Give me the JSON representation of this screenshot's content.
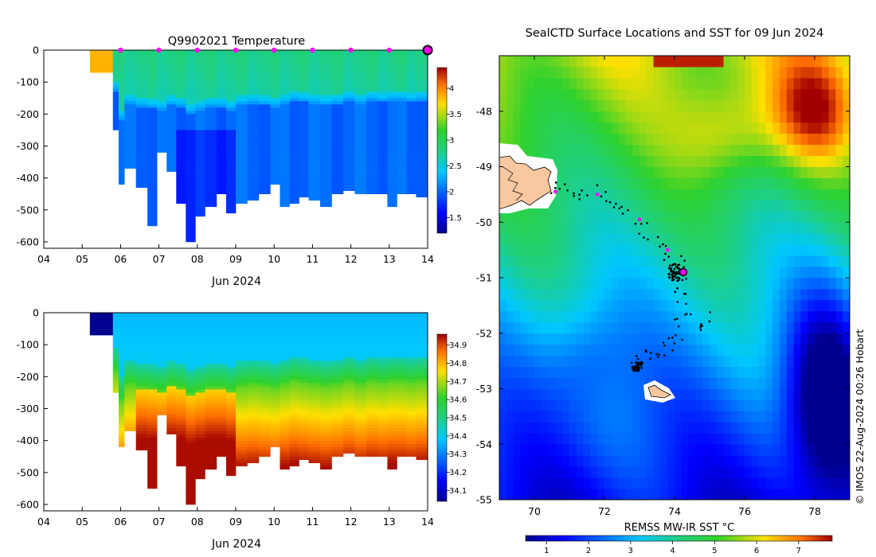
{
  "chart_data": [
    {
      "type": "heatmap",
      "panel": "temperature-section",
      "title": "Q9902021  Temperature",
      "xlabel": "Jun 2024",
      "ylabel": "",
      "x_ticks": [
        "04",
        "05",
        "06",
        "07",
        "08",
        "09",
        "10",
        "11",
        "12",
        "13",
        "14"
      ],
      "y_ticks": [
        "0",
        "-100",
        "-200",
        "-300",
        "-400",
        "-500",
        "-600"
      ],
      "x_range_days": [
        4,
        14
      ],
      "y_range": [
        -620,
        0
      ],
      "profile_markers_days": [
        6,
        7,
        8,
        9,
        10,
        11,
        12,
        13
      ],
      "latest_marker_day": 14,
      "colorbar": {
        "ticks": [
          "1.5",
          "2",
          "2.5",
          "3",
          "3.5",
          "4"
        ],
        "range": [
          1.2,
          4.4
        ]
      },
      "profiles": {
        "x_start": [
          5.2,
          5.8,
          5.95,
          6.1,
          6.4,
          6.7,
          6.95,
          7.2,
          7.45,
          7.7,
          7.95,
          8.2,
          8.5,
          8.75,
          9.0,
          9.3,
          9.6,
          9.9,
          10.15,
          10.4,
          10.65,
          10.9,
          11.2,
          11.5,
          11.8,
          12.1,
          12.4,
          12.7,
          12.95,
          13.2,
          13.45,
          13.7
        ],
        "x_end": [
          5.8,
          5.95,
          6.1,
          6.4,
          6.7,
          6.95,
          7.2,
          7.45,
          7.7,
          7.95,
          8.2,
          8.5,
          8.75,
          9.0,
          9.3,
          9.6,
          9.9,
          10.15,
          10.4,
          10.65,
          10.9,
          11.2,
          11.5,
          11.8,
          12.1,
          12.4,
          12.7,
          12.95,
          13.2,
          13.45,
          13.7,
          14.0
        ],
        "max_depth": [
          65,
          245,
          415,
          370,
          430,
          550,
          320,
          380,
          480,
          595,
          520,
          490,
          450,
          510,
          480,
          470,
          450,
          420,
          490,
          480,
          460,
          470,
          490,
          450,
          440,
          450,
          445,
          450,
          485,
          450,
          450,
          455
        ],
        "mixed_layer_depth": [
          65,
          130,
          220,
          170,
          180,
          185,
          190,
          175,
          180,
          200,
          190,
          180,
          180,
          190,
          175,
          170,
          175,
          180,
          170,
          160,
          165,
          170,
          175,
          170,
          160,
          170,
          160,
          165,
          160,
          160,
          165,
          160
        ]
      }
    },
    {
      "type": "heatmap",
      "panel": "salinity-section",
      "title": "",
      "xlabel": "Jun 2024",
      "ylabel": "",
      "x_ticks": [
        "04",
        "05",
        "06",
        "07",
        "08",
        "09",
        "10",
        "11",
        "12",
        "13",
        "14"
      ],
      "y_ticks": [
        "0",
        "-100",
        "-200",
        "-300",
        "-400",
        "-500",
        "-600"
      ],
      "x_range_days": [
        4,
        14
      ],
      "y_range": [
        -620,
        0
      ],
      "colorbar": {
        "ticks": [
          "34.1",
          "34.2",
          "34.3",
          "34.4",
          "34.5",
          "34.6",
          "34.7",
          "34.8",
          "34.9"
        ],
        "range": [
          34.04,
          34.96
        ]
      }
    },
    {
      "type": "heatmap",
      "panel": "sst-map",
      "title": "SealCTD Surface Locations and SST for 09 Jun 2024",
      "xlabel": "",
      "ylabel": "",
      "x_ticks": [
        "70",
        "72",
        "74",
        "76",
        "78"
      ],
      "y_ticks": [
        "-48",
        "-49",
        "-50",
        "-51",
        "-52",
        "-53",
        "-54",
        "-55"
      ],
      "lon_range": [
        69,
        79
      ],
      "lat_range": [
        -55,
        -47
      ],
      "colorbar": {
        "label": "REMSS MW-IR SST °C",
        "ticks": [
          "1",
          "2",
          "3",
          "4",
          "5",
          "6",
          "7"
        ],
        "range": [
          0.5,
          7.8
        ]
      },
      "track_highlight": [
        {
          "lon": 70.6,
          "lat": -49.45
        },
        {
          "lon": 71.8,
          "lat": -49.5
        },
        {
          "lon": 73.0,
          "lat": -49.95
        },
        {
          "lon": 73.8,
          "lat": -50.5
        },
        {
          "lon": 74.25,
          "lat": -50.9
        }
      ],
      "last_position": {
        "lon": 74.25,
        "lat": -50.9
      }
    }
  ],
  "credit": "© IMOS 22-Aug-2024 00:26 Hobart"
}
